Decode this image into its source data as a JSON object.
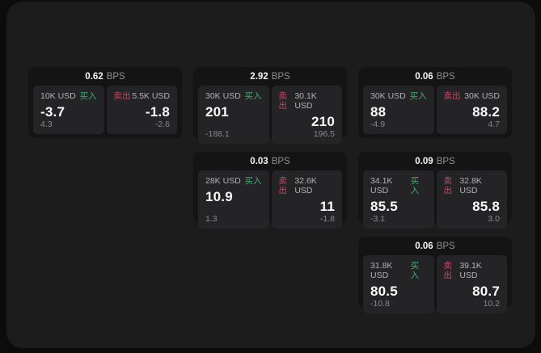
{
  "page": {
    "bps_unit": "BPS",
    "buy_label": "买入",
    "sell_label": "卖出"
  },
  "colors": {
    "buy_green": "#3fae70",
    "sell_red": "#c04a63",
    "background": "#0c0c0d",
    "panel_bg": "#1c1c1d",
    "card_bg": "#141415",
    "tile_bg": "#242426"
  },
  "cards": [
    {
      "bps": "0.62",
      "col": 1,
      "row": 1,
      "buy": {
        "size": "10K USD",
        "price": "-3.7",
        "delta": "4.3"
      },
      "sell": {
        "size": "5.5K USD",
        "price": "-1.8",
        "delta": "-2.6"
      }
    },
    {
      "bps": "2.92",
      "col": 2,
      "row": 1,
      "buy": {
        "size": "30K USD",
        "price": "201",
        "delta": "-188.1"
      },
      "sell": {
        "size": "30.1K USD",
        "price": "210",
        "delta": "196.5"
      }
    },
    {
      "bps": "0.06",
      "col": 3,
      "row": 1,
      "buy": {
        "size": "30K USD",
        "price": "88",
        "delta": "-4.9"
      },
      "sell": {
        "size": "30K USD",
        "price": "88.2",
        "delta": "4.7"
      }
    },
    {
      "bps": "0.03",
      "col": 2,
      "row": 2,
      "buy": {
        "size": "28K USD",
        "price": "10.9",
        "delta": "1.3"
      },
      "sell": {
        "size": "32.6K USD",
        "price": "11",
        "delta": "-1.8"
      }
    },
    {
      "bps": "0.09",
      "col": 3,
      "row": 2,
      "buy": {
        "size": "34.1K USD",
        "price": "85.5",
        "delta": "-3.1"
      },
      "sell": {
        "size": "32.8K USD",
        "price": "85.8",
        "delta": "3.0"
      }
    },
    {
      "bps": "0.06",
      "col": 3,
      "row": 3,
      "buy": {
        "size": "31.8K USD",
        "price": "80.5",
        "delta": "-10.8"
      },
      "sell": {
        "size": "39.1K USD",
        "price": "80.7",
        "delta": "10.2"
      }
    }
  ]
}
